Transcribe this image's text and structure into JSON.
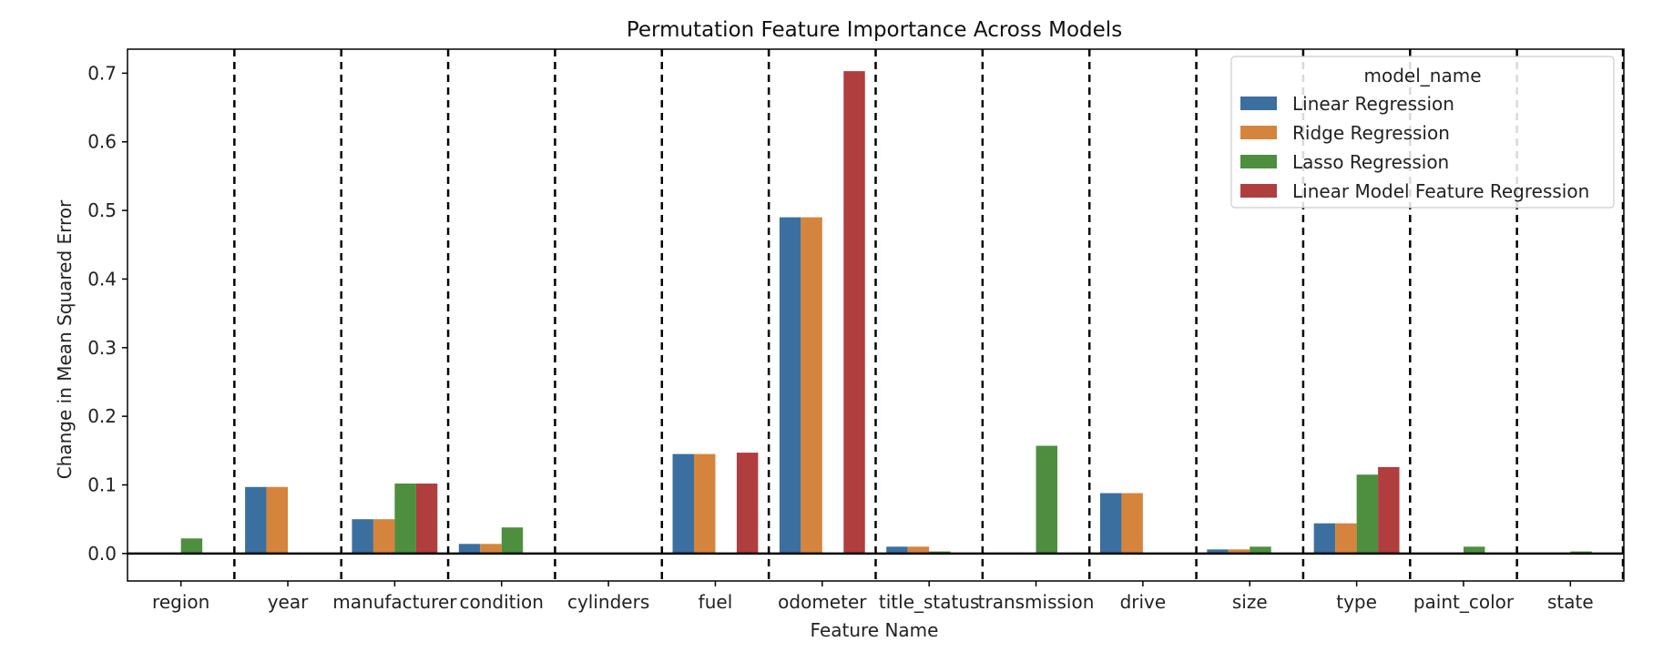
{
  "chart_data": {
    "type": "bar",
    "title": "Permutation Feature Importance Across Models",
    "xlabel": "Feature Name",
    "ylabel": "Change in Mean Squared Error",
    "ylim": [
      -0.04,
      0.735
    ],
    "yticks": [
      "0.0",
      "0.1",
      "0.2",
      "0.3",
      "0.4",
      "0.5",
      "0.6",
      "0.7"
    ],
    "categories": [
      "region",
      "year",
      "manufacturer",
      "condition",
      "cylinders",
      "fuel",
      "odometer",
      "title_status",
      "transmission",
      "drive",
      "size",
      "type",
      "paint_color",
      "state"
    ],
    "legend": {
      "title": "model_name",
      "position": "top-right"
    },
    "grid": false,
    "separators": "dashed vertical lines between categories",
    "series": [
      {
        "name": "Linear Regression",
        "color": "#3b6f9f",
        "values": [
          0.0,
          0.097,
          0.05,
          0.014,
          0.0,
          0.145,
          0.49,
          0.01,
          0.0,
          0.088,
          0.006,
          0.044,
          0.0,
          0.0
        ]
      },
      {
        "name": "Ridge Regression",
        "color": "#d4843c",
        "values": [
          0.0,
          0.097,
          0.05,
          0.014,
          0.0,
          0.145,
          0.49,
          0.01,
          0.0,
          0.088,
          0.006,
          0.044,
          0.0,
          0.0
        ]
      },
      {
        "name": "Lasso Regression",
        "color": "#4d8f3f",
        "values": [
          0.022,
          0.0,
          0.102,
          0.038,
          0.0,
          0.0,
          0.0,
          0.003,
          0.157,
          0.0,
          0.01,
          0.115,
          0.01,
          0.003
        ]
      },
      {
        "name": "Linear Model Feature Regression",
        "color": "#b03e3e",
        "values": [
          0.0,
          0.0,
          0.102,
          0.0,
          0.0,
          0.147,
          0.703,
          0.0,
          0.0,
          0.0,
          0.0,
          0.126,
          0.0,
          0.0
        ]
      }
    ]
  }
}
